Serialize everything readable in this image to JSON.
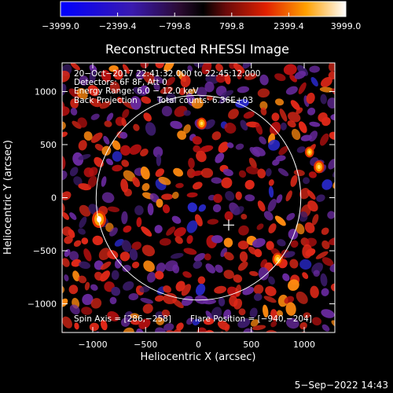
{
  "chart_data": {
    "type": "heatmap",
    "title": "Reconstructed RHESSI Image",
    "xlabel": "Heliocentric X (arcsec)",
    "ylabel": "Heliocentric Y (arcsec)",
    "xlim": [
      -1290,
      1290
    ],
    "ylim": [
      -1270,
      1270
    ],
    "x_ticks": [
      -1000,
      -500,
      0,
      500,
      1000
    ],
    "y_ticks": [
      1000,
      500,
      0,
      -500,
      -1000
    ],
    "x_tick_labels": [
      "−1000",
      "−500",
      "0",
      "500",
      "1000"
    ],
    "y_tick_labels": [
      "1000",
      "500",
      "0",
      "−500",
      "−1000"
    ],
    "colorbar": {
      "min": -3999.0,
      "max": 3999.0,
      "tick_values": [
        -3999.0,
        -2399.4,
        -799.8,
        799.8,
        2399.4,
        3999.0
      ],
      "tick_labels": [
        "−3999.0",
        "−2399.4",
        "−799.8",
        "799.8",
        "2399.4",
        "3999.0"
      ],
      "colormap": "blue-black-red-yellow-white"
    },
    "solar_limb_radius_arcsec": 968,
    "flare_position": [
      -940,
      -204
    ],
    "spin_axis": [
      286,
      -258
    ],
    "bright_sources": [
      {
        "x": -940,
        "y": -204,
        "value": 3999
      },
      {
        "x": 750,
        "y": -580,
        "value": 2800
      },
      {
        "x": 1140,
        "y": 290,
        "value": 2700
      },
      {
        "x": 30,
        "y": 700,
        "value": 2400
      },
      {
        "x": 1050,
        "y": 430,
        "value": 2200
      }
    ],
    "annotations": {
      "line1": "20−Oct−2017 22:41:32.000 to 22:45:12.000",
      "line2": "Detectors: 6F 8F, Att 0",
      "line3": "Energy Range: 6.0 − 12.0 keV",
      "line4a": "Back Projection",
      "line4b": "Total counts: 6.36E+03",
      "spin_axis_label": "Spin Axis = [286,−258]",
      "flare_position_label": "Flare Position = [−940,−204]"
    }
  },
  "footer": {
    "timestamp": "5−Sep−2022 14:43"
  },
  "colors": {
    "limb": "#ffffff",
    "marker": "#ffffff",
    "text": "#ffffff",
    "background": "#000000"
  }
}
